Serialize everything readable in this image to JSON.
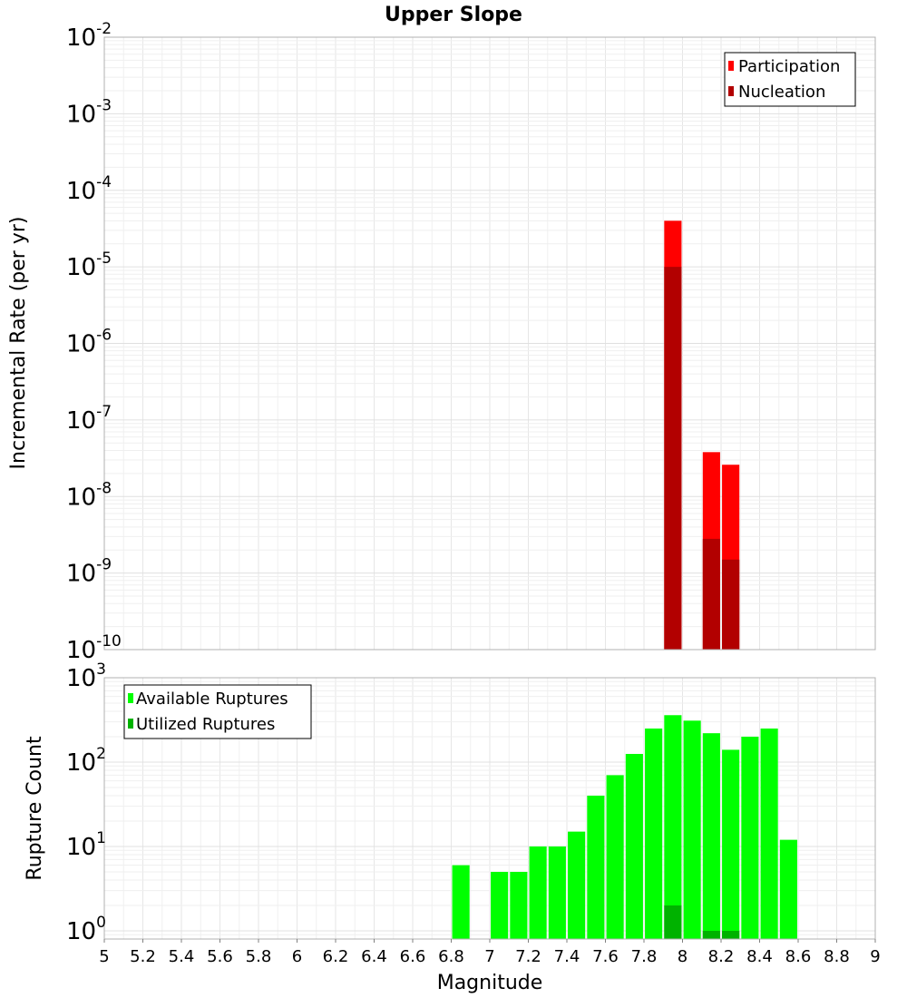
{
  "chart_data": [
    {
      "type": "bar",
      "title": "Upper Slope",
      "xlabel": "",
      "ylabel": "Incremental Rate (per yr)",
      "yscale": "log",
      "ylim": [
        1e-10,
        0.01
      ],
      "xlim": [
        5,
        9
      ],
      "y_tick_exponents": [
        "-2",
        "-3",
        "-4",
        "-5",
        "-6",
        "-7",
        "-8",
        "-9",
        "-10"
      ],
      "legend": {
        "position": "top-right",
        "entries": [
          "Participation",
          "Nucleation"
        ]
      },
      "grid": true,
      "series": [
        {
          "name": "Participation",
          "color": "#ff0000",
          "points": [
            {
              "x": 7.95,
              "y": 4e-05
            },
            {
              "x": 8.15,
              "y": 3.8e-08
            },
            {
              "x": 8.25,
              "y": 2.6e-08
            }
          ]
        },
        {
          "name": "Nucleation",
          "color": "#b20000",
          "points": [
            {
              "x": 7.95,
              "y": 1e-05
            },
            {
              "x": 8.15,
              "y": 2.8e-09
            },
            {
              "x": 8.25,
              "y": 1.5e-09
            }
          ]
        }
      ]
    },
    {
      "type": "bar",
      "title": "",
      "xlabel": "Magnitude",
      "ylabel": "Rupture Count",
      "yscale": "log",
      "ylim": [
        0.8,
        1000
      ],
      "xlim": [
        5,
        9
      ],
      "y_tick_exponents": [
        "3",
        "2",
        "1",
        "0"
      ],
      "x_tick_labels": [
        "5",
        "5.2",
        "5.4",
        "5.6",
        "5.8",
        "6",
        "6.2",
        "6.4",
        "6.6",
        "6.8",
        "7",
        "7.2",
        "7.4",
        "7.6",
        "7.8",
        "8",
        "8.2",
        "8.4",
        "8.6",
        "8.8",
        "9"
      ],
      "legend": {
        "position": "top-left",
        "entries": [
          "Available Ruptures",
          "Utilized Ruptures"
        ]
      },
      "grid": true,
      "series": [
        {
          "name": "Available Ruptures",
          "color": "#00ff00",
          "points": [
            {
              "x": 6.85,
              "y": 6
            },
            {
              "x": 7.05,
              "y": 5
            },
            {
              "x": 7.15,
              "y": 5
            },
            {
              "x": 7.25,
              "y": 10
            },
            {
              "x": 7.35,
              "y": 10
            },
            {
              "x": 7.45,
              "y": 15
            },
            {
              "x": 7.55,
              "y": 40
            },
            {
              "x": 7.65,
              "y": 70
            },
            {
              "x": 7.75,
              "y": 125
            },
            {
              "x": 7.85,
              "y": 250
            },
            {
              "x": 7.95,
              "y": 360
            },
            {
              "x": 8.05,
              "y": 310
            },
            {
              "x": 8.15,
              "y": 220
            },
            {
              "x": 8.25,
              "y": 140
            },
            {
              "x": 8.35,
              "y": 200
            },
            {
              "x": 8.45,
              "y": 250
            },
            {
              "x": 8.55,
              "y": 12
            }
          ]
        },
        {
          "name": "Utilized Ruptures",
          "color": "#00b200",
          "points": [
            {
              "x": 7.95,
              "y": 2
            },
            {
              "x": 8.15,
              "y": 1
            },
            {
              "x": 8.25,
              "y": 1
            }
          ]
        }
      ]
    }
  ]
}
